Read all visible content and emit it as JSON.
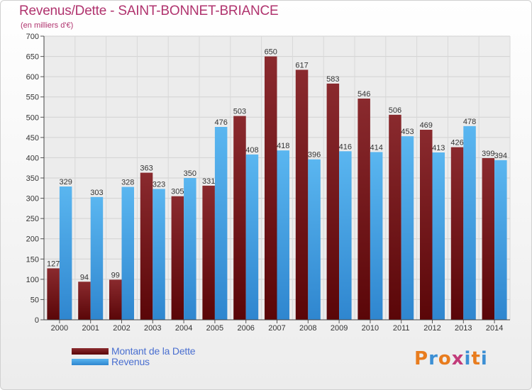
{
  "header": {
    "title": "Revenus/Dette - SAINT-BONNET-BRIANCE",
    "subtitle": "(en milliers d'€)"
  },
  "chart_data": {
    "type": "bar",
    "categories": [
      "2000",
      "2001",
      "2002",
      "2003",
      "2004",
      "2005",
      "2006",
      "2007",
      "2008",
      "2009",
      "2010",
      "2011",
      "2012",
      "2013",
      "2014"
    ],
    "series": [
      {
        "name": "Montant de la Dette",
        "color": "#7a1418",
        "values": [
          127,
          94,
          99,
          363,
          305,
          331,
          503,
          650,
          617,
          583,
          546,
          506,
          469,
          426,
          399
        ]
      },
      {
        "name": "Revenus",
        "color": "#4aa8ea",
        "values": [
          329,
          303,
          328,
          323,
          350,
          476,
          408,
          418,
          396,
          416,
          414,
          453,
          413,
          478,
          394
        ]
      }
    ],
    "ylim": [
      0,
      700
    ],
    "yticks": [
      0,
      50,
      100,
      150,
      200,
      250,
      300,
      350,
      400,
      450,
      500,
      550,
      600,
      650,
      700
    ],
    "grid": true,
    "legend_position": "bottom-left"
  },
  "legend": [
    {
      "label": "Montant de la Dette",
      "color": "#7a1418"
    },
    {
      "label": "Revenus",
      "color": "#4aa8ea"
    }
  ],
  "logo": {
    "letters": [
      "P",
      "r",
      "o",
      "x",
      "i",
      "t",
      "i"
    ],
    "colors": [
      "#e87c1e",
      "#3c8fd4",
      "#e87c1e",
      "#c23b7a",
      "#3c8fd4",
      "#e87c1e",
      "#3c8fd4"
    ]
  }
}
